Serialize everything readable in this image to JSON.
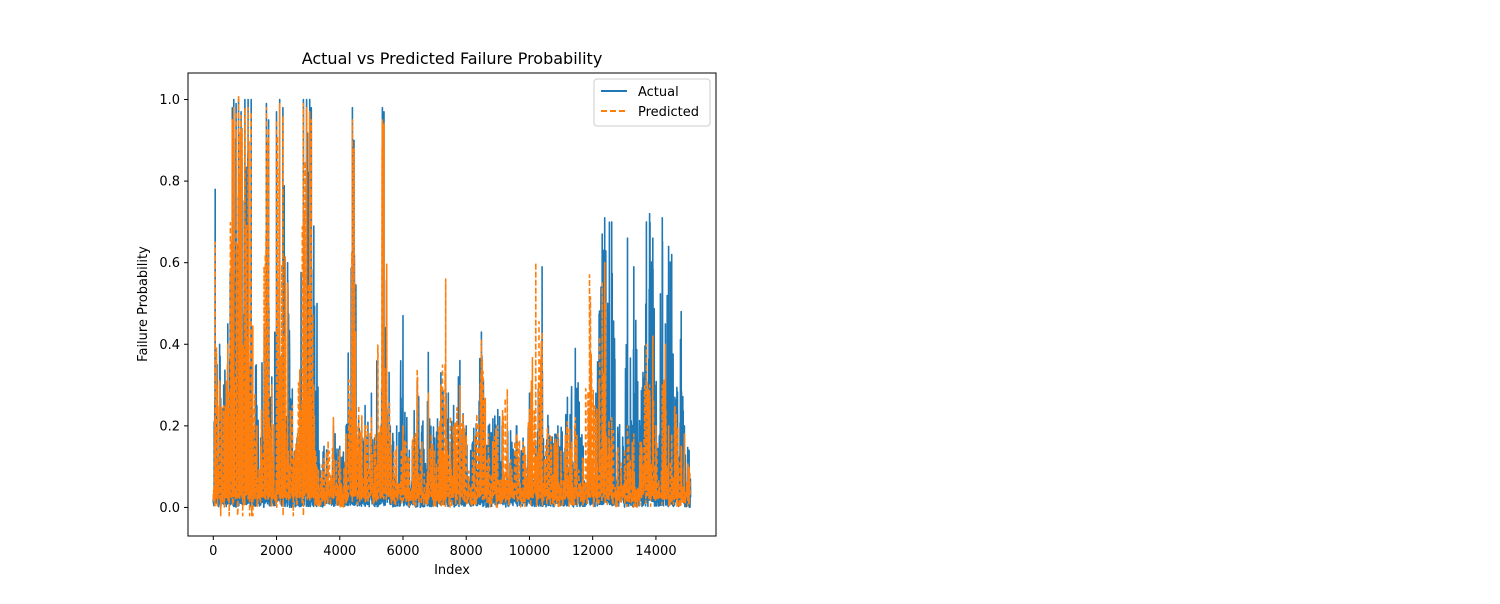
{
  "chart_data": {
    "type": "line",
    "title": "Actual vs Predicted Failure Probability",
    "xlabel": "Index",
    "ylabel": "Failure Probability",
    "xlim": [
      -800,
      15900
    ],
    "ylim": [
      -0.07,
      1.065
    ],
    "xticks": [
      0,
      2000,
      4000,
      6000,
      8000,
      10000,
      12000,
      14000
    ],
    "xtick_labels": [
      "0",
      "2000",
      "4000",
      "6000",
      "8000",
      "10000",
      "12000",
      "14000"
    ],
    "yticks": [
      0.0,
      0.2,
      0.4,
      0.6,
      0.8,
      1.0
    ],
    "ytick_labels": [
      "0.0",
      "0.2",
      "0.4",
      "0.6",
      "0.8",
      "1.0"
    ],
    "grid": false,
    "legend": "top-right",
    "series": [
      {
        "name": "Actual",
        "color": "#1f77b4",
        "dash": "solid",
        "peaks": [
          [
            0,
            0.01
          ],
          [
            60,
            0.78
          ],
          [
            120,
            0.35
          ],
          [
            200,
            0.4
          ],
          [
            330,
            0.3
          ],
          [
            460,
            0.45
          ],
          [
            600,
            0.98
          ],
          [
            650,
            1.0
          ],
          [
            720,
            0.99
          ],
          [
            800,
            1.0
          ],
          [
            880,
            0.97
          ],
          [
            1000,
            1.0
          ],
          [
            1100,
            1.0
          ],
          [
            1200,
            1.0
          ],
          [
            1380,
            0.25
          ],
          [
            1500,
            0.17
          ],
          [
            1680,
            0.99
          ],
          [
            1750,
            0.95
          ],
          [
            1850,
            0.32
          ],
          [
            2000,
            0.97
          ],
          [
            2100,
            1.0
          ],
          [
            2200,
            0.98
          ],
          [
            2350,
            0.6
          ],
          [
            2500,
            0.29
          ],
          [
            2650,
            0.17
          ],
          [
            2850,
            1.0
          ],
          [
            2950,
            1.0
          ],
          [
            3050,
            1.0
          ],
          [
            3100,
            0.98
          ],
          [
            3180,
            0.69
          ],
          [
            3280,
            0.5
          ],
          [
            3500,
            0.15
          ],
          [
            3800,
            0.2
          ],
          [
            4000,
            0.15
          ],
          [
            4200,
            0.2
          ],
          [
            4400,
            0.98
          ],
          [
            4450,
            0.9
          ],
          [
            4600,
            0.22
          ],
          [
            4800,
            0.25
          ],
          [
            5000,
            0.28
          ],
          [
            5100,
            0.17
          ],
          [
            5350,
            0.98
          ],
          [
            5400,
            0.97
          ],
          [
            5600,
            0.2
          ],
          [
            5800,
            0.2
          ],
          [
            6000,
            0.47
          ],
          [
            6200,
            0.14
          ],
          [
            6450,
            0.31
          ],
          [
            6600,
            0.2
          ],
          [
            6800,
            0.38
          ],
          [
            7000,
            0.17
          ],
          [
            7200,
            0.33
          ],
          [
            7350,
            0.32
          ],
          [
            7600,
            0.25
          ],
          [
            7800,
            0.36
          ],
          [
            8000,
            0.2
          ],
          [
            8200,
            0.16
          ],
          [
            8480,
            0.43
          ],
          [
            8700,
            0.2
          ],
          [
            9000,
            0.24
          ],
          [
            9300,
            0.2
          ],
          [
            9600,
            0.2
          ],
          [
            9800,
            0.17
          ],
          [
            10000,
            0.28
          ],
          [
            10200,
            0.15
          ],
          [
            10400,
            0.59
          ],
          [
            10600,
            0.2
          ],
          [
            10900,
            0.2
          ],
          [
            11200,
            0.27
          ],
          [
            11450,
            0.39
          ],
          [
            11700,
            0.15
          ],
          [
            11900,
            0.14
          ],
          [
            12100,
            0.28
          ],
          [
            12300,
            0.67
          ],
          [
            12380,
            0.71
          ],
          [
            12600,
            0.7
          ],
          [
            12800,
            0.18
          ],
          [
            13100,
            0.66
          ],
          [
            13300,
            0.59
          ],
          [
            13500,
            0.2
          ],
          [
            13700,
            0.7
          ],
          [
            13800,
            0.72
          ],
          [
            13900,
            0.66
          ],
          [
            14000,
            0.3
          ],
          [
            14200,
            0.71
          ],
          [
            14300,
            0.45
          ],
          [
            14400,
            0.64
          ],
          [
            14500,
            0.62
          ],
          [
            14600,
            0.27
          ],
          [
            14800,
            0.48
          ],
          [
            14900,
            0.2
          ],
          [
            15050,
            0.14
          ]
        ]
      },
      {
        "name": "Predicted",
        "color": "#ff7f0e",
        "dash": "dashed",
        "peaks": [
          [
            0,
            0.02
          ],
          [
            60,
            0.65
          ],
          [
            120,
            0.3
          ],
          [
            200,
            0.31
          ],
          [
            330,
            0.25
          ],
          [
            460,
            0.4
          ],
          [
            600,
            0.95
          ],
          [
            650,
            0.98
          ],
          [
            720,
            0.97
          ],
          [
            800,
            1.01
          ],
          [
            880,
            0.96
          ],
          [
            1000,
            0.98
          ],
          [
            1100,
            0.98
          ],
          [
            1200,
            0.97
          ],
          [
            1380,
            0.2
          ],
          [
            1500,
            0.15
          ],
          [
            1680,
            0.98
          ],
          [
            1750,
            0.93
          ],
          [
            1850,
            0.3
          ],
          [
            2000,
            0.95
          ],
          [
            2100,
            0.99
          ],
          [
            2200,
            0.96
          ],
          [
            2350,
            0.55
          ],
          [
            2500,
            0.25
          ],
          [
            2650,
            0.15
          ],
          [
            2850,
            0.99
          ],
          [
            2950,
            0.98
          ],
          [
            3050,
            0.97
          ],
          [
            3100,
            0.95
          ],
          [
            3180,
            0.3
          ],
          [
            3280,
            0.1
          ],
          [
            3500,
            0.12
          ],
          [
            3800,
            0.22
          ],
          [
            4000,
            0.14
          ],
          [
            4200,
            0.18
          ],
          [
            4400,
            0.95
          ],
          [
            4450,
            0.88
          ],
          [
            4600,
            0.25
          ],
          [
            4800,
            0.2
          ],
          [
            5000,
            0.22
          ],
          [
            5100,
            0.15
          ],
          [
            5350,
            0.95
          ],
          [
            5400,
            0.94
          ],
          [
            5600,
            0.18
          ],
          [
            5800,
            0.15
          ],
          [
            6000,
            0.2
          ],
          [
            6200,
            0.12
          ],
          [
            6450,
            0.34
          ],
          [
            6600,
            0.16
          ],
          [
            6800,
            0.28
          ],
          [
            7000,
            0.14
          ],
          [
            7200,
            0.3
          ],
          [
            7350,
            0.56
          ],
          [
            7600,
            0.2
          ],
          [
            7800,
            0.3
          ],
          [
            8000,
            0.18
          ],
          [
            8200,
            0.14
          ],
          [
            8480,
            0.41
          ],
          [
            8700,
            0.18
          ],
          [
            9000,
            0.2
          ],
          [
            9300,
            0.29
          ],
          [
            9600,
            0.18
          ],
          [
            9800,
            0.16
          ],
          [
            10000,
            0.24
          ],
          [
            10200,
            0.6
          ],
          [
            10400,
            0.43
          ],
          [
            10600,
            0.18
          ],
          [
            10900,
            0.18
          ],
          [
            11200,
            0.21
          ],
          [
            11450,
            0.22
          ],
          [
            11700,
            0.12
          ],
          [
            11900,
            0.57
          ],
          [
            12100,
            0.22
          ],
          [
            12300,
            0.55
          ],
          [
            12380,
            0.6
          ],
          [
            12600,
            0.22
          ],
          [
            12800,
            0.15
          ],
          [
            13100,
            0.2
          ],
          [
            13300,
            0.18
          ],
          [
            13500,
            0.16
          ],
          [
            13700,
            0.4
          ],
          [
            13800,
            0.3
          ],
          [
            13900,
            0.42
          ],
          [
            14000,
            0.2
          ],
          [
            14200,
            0.3
          ],
          [
            14300,
            0.4
          ],
          [
            14400,
            0.2
          ],
          [
            14500,
            0.18
          ],
          [
            14600,
            0.25
          ],
          [
            14800,
            0.15
          ],
          [
            14900,
            0.18
          ],
          [
            15050,
            0.1
          ]
        ]
      }
    ]
  }
}
